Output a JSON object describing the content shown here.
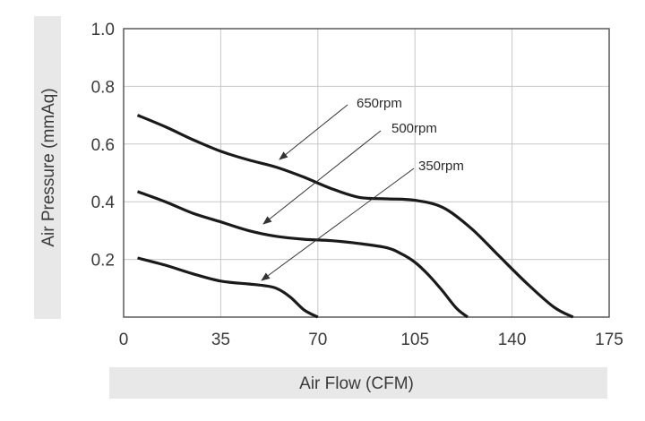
{
  "chart_data": {
    "type": "line",
    "xlabel": "Air Flow (CFM)",
    "ylabel": "Air Pressure (mmAq)",
    "xlim": [
      0,
      175
    ],
    "ylim": [
      0,
      1.0
    ],
    "x_ticks": [
      "0",
      "35",
      "70",
      "105",
      "140",
      "175"
    ],
    "y_ticks": [
      "0.2",
      "0.4",
      "0.6",
      "0.8",
      "1.0"
    ],
    "grid": true,
    "annotations": [
      "650rpm",
      "500rpm",
      "350rpm"
    ],
    "series": [
      {
        "name": "650rpm",
        "x": [
          5,
          15,
          25,
          35,
          45,
          55,
          65,
          75,
          85,
          95,
          105,
          115,
          125,
          135,
          145,
          155,
          162
        ],
        "y": [
          0.7,
          0.66,
          0.615,
          0.575,
          0.545,
          0.52,
          0.485,
          0.445,
          0.415,
          0.41,
          0.405,
          0.38,
          0.31,
          0.215,
          0.12,
          0.035,
          0.0
        ]
      },
      {
        "name": "500rpm",
        "x": [
          5,
          15,
          25,
          35,
          45,
          55,
          65,
          75,
          85,
          95,
          100,
          105,
          110,
          115,
          120,
          124
        ],
        "y": [
          0.435,
          0.4,
          0.36,
          0.33,
          0.3,
          0.28,
          0.27,
          0.265,
          0.255,
          0.24,
          0.22,
          0.19,
          0.145,
          0.09,
          0.03,
          0.0
        ]
      },
      {
        "name": "350rpm",
        "x": [
          5,
          15,
          25,
          35,
          45,
          50,
          55,
          60,
          65,
          70
        ],
        "y": [
          0.205,
          0.18,
          0.15,
          0.125,
          0.115,
          0.11,
          0.1,
          0.07,
          0.025,
          0.0
        ]
      }
    ],
    "colors": {
      "curve": "#1a1a1a",
      "grid": "#c8c8c8",
      "frame": "#5a5a5a",
      "label_band": "#e8e8e8",
      "arrow": "#333333"
    }
  }
}
